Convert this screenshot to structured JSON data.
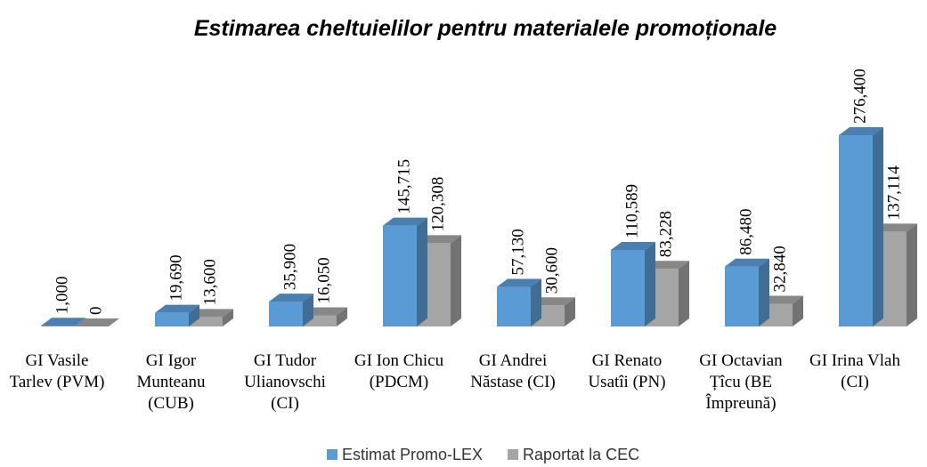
{
  "chart_data": {
    "type": "bar3d",
    "title": "Estimarea cheltuielilor pentru materialele promoționale",
    "categories": [
      "GI Vasile Tarlev (PVM)",
      "GI Igor Munteanu (CUB)",
      "GI Tudor Ulianovschi (CI)",
      "GI Ion Chicu (PDCM)",
      "GI Andrei Năstase (CI)",
      "GI Renato Usatîi (PN)",
      "GI Octavian Țîcu (BE Împreună)",
      "GI Irina Vlah (CI)"
    ],
    "series": [
      {
        "name": "Estimat Promo-LEX",
        "color": "#5b9bd5",
        "values": [
          1000,
          19690,
          35900,
          145715,
          57130,
          110589,
          86480,
          276400
        ],
        "value_labels": [
          "1,000",
          "19,690",
          "35,900",
          "145,715",
          "57,130",
          "110,589",
          "86,480",
          "276,400"
        ]
      },
      {
        "name": "Raportat la CEC",
        "color": "#a5a5a5",
        "values": [
          0,
          13600,
          16050,
          120308,
          30600,
          83228,
          32840,
          137114
        ],
        "value_labels": [
          "0",
          "13,600",
          "16,050",
          "120,308",
          "30,600",
          "83,228",
          "32,840",
          "137,114"
        ]
      }
    ],
    "legend": "bottom"
  }
}
